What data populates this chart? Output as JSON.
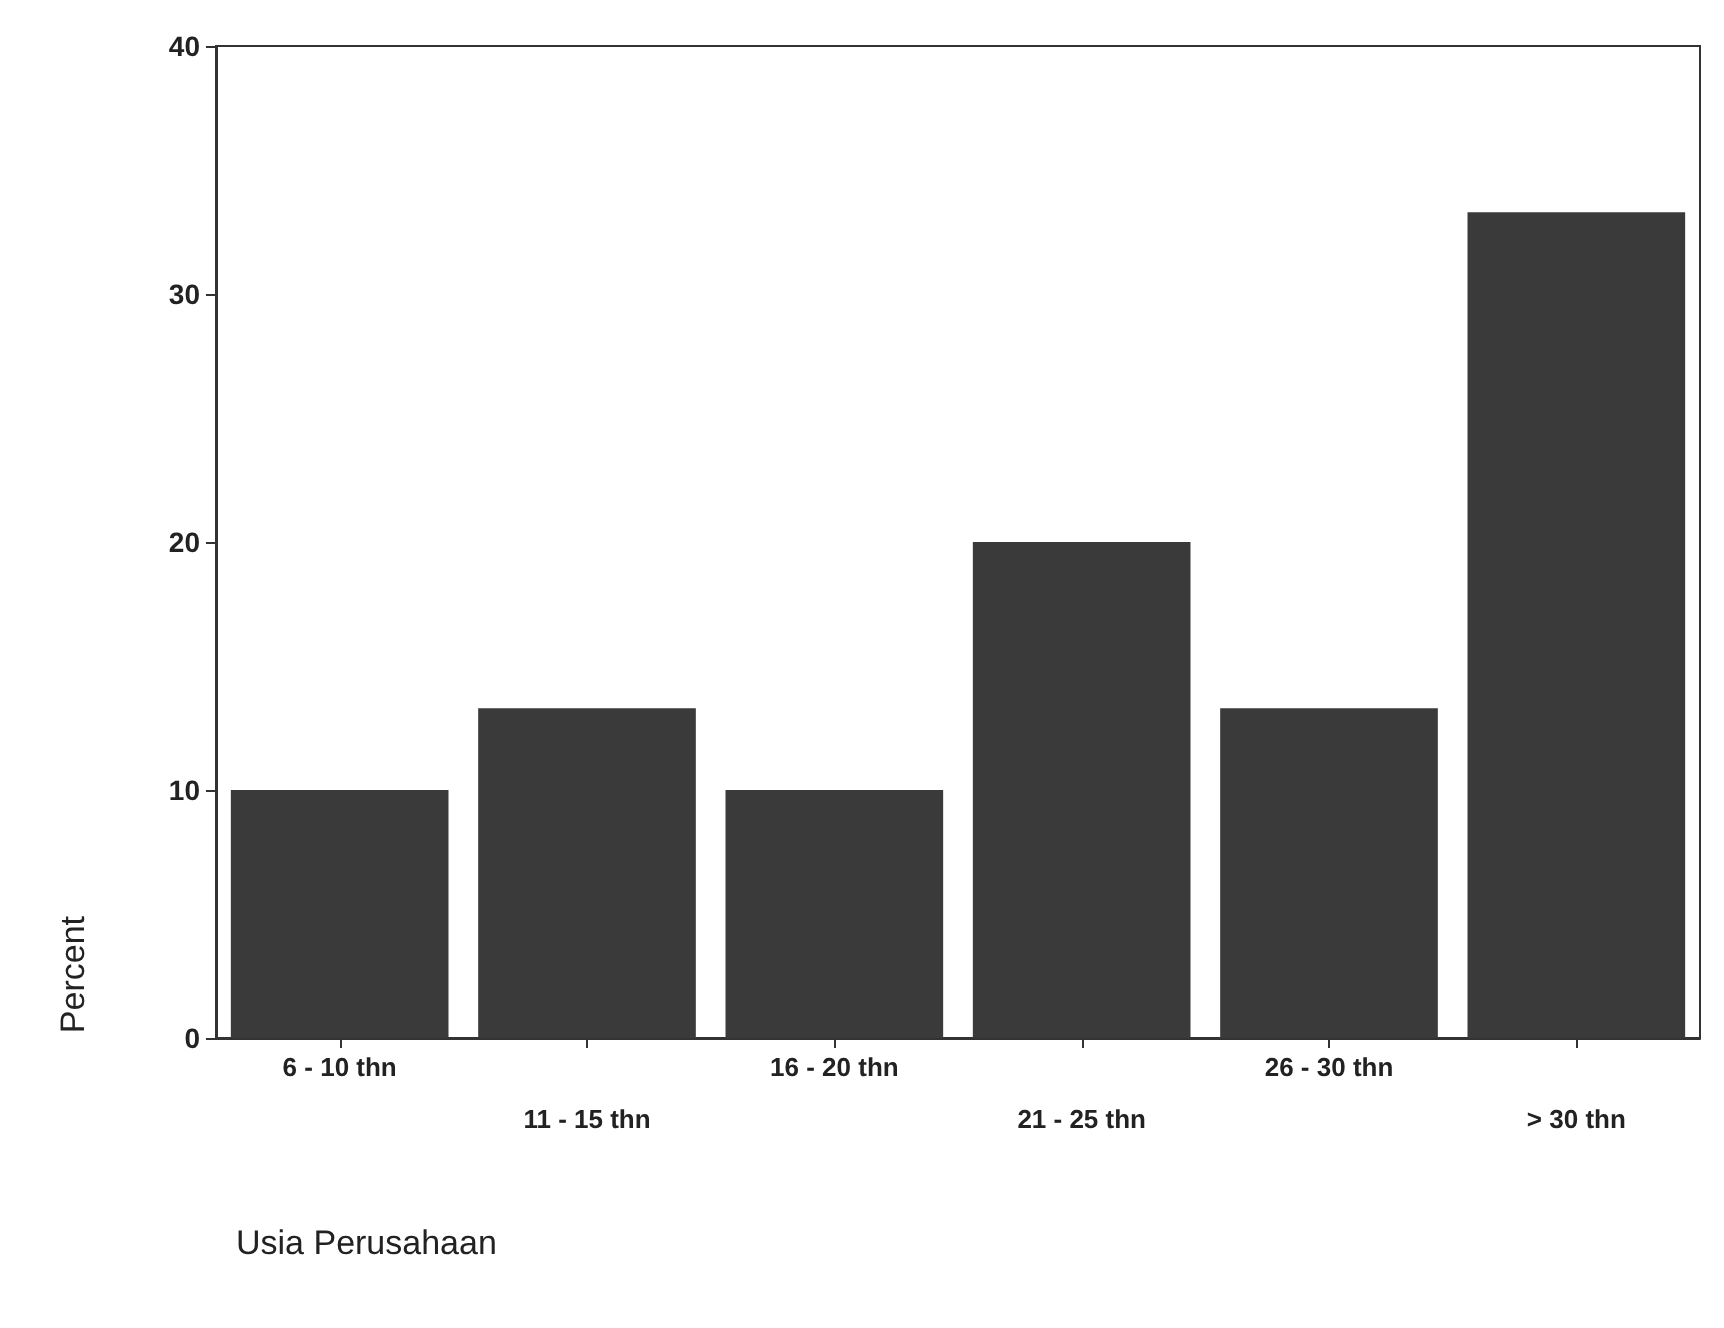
{
  "chart_data": {
    "type": "bar",
    "xlabel": "Usia Perusahaan",
    "ylabel": "Percent",
    "categories": [
      "6 - 10 thn",
      "11 - 15 thn",
      "16 - 20 thn",
      "21 - 25 thn",
      "26 - 30 thn",
      "> 30 thn"
    ],
    "values": [
      10,
      13.3,
      10,
      20,
      13.3,
      33.3
    ],
    "color": "#3a3a3a",
    "ylim": [
      0,
      40
    ],
    "yticks": [
      0,
      10,
      20,
      30,
      40
    ],
    "grid": false
  }
}
